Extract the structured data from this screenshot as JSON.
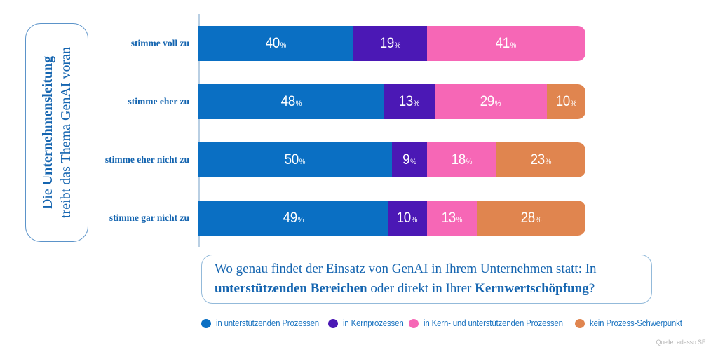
{
  "title": {
    "line1_part1": "Die ",
    "line1_part2_bold": "Unternehmensleitung",
    "line2": "treibt das Thema GenAI voran"
  },
  "question": {
    "part1": "Wo genau findet der Einsatz von GenAI in Ihrem Unternehmen statt: In",
    "part2_bold": "unterstützenden Bereichen",
    "part3": " oder direkt in Ihrer ",
    "part4_bold": "Kernwertschöpfung",
    "part5": "?"
  },
  "source": "Quelle: adesso SE",
  "colors": {
    "bar_blue": "#0a6fc3",
    "bar_purple": "#4b18b5",
    "bar_pink": "#f667b6",
    "bar_orange": "#e0854f",
    "text_blue": "#1565b0",
    "legend_text_blue": "#1a73c0",
    "axis_line": "#b9cfe3"
  },
  "chart_data": {
    "type": "bar",
    "orientation": "horizontal-stacked",
    "title": "Die Unternehmensleitung treibt das Thema GenAI voran",
    "categories": [
      "stimme voll zu",
      "stimme eher zu",
      "stimme eher nicht zu",
      "stimme gar nicht zu"
    ],
    "series": [
      {
        "name": "in unterstützenden Prozessen",
        "color": "#0a6fc3",
        "values": [
          40,
          48,
          50,
          49
        ]
      },
      {
        "name": "in Kernprozessen",
        "color": "#4b18b5",
        "values": [
          19,
          13,
          9,
          10
        ]
      },
      {
        "name": "in Kern- und unterstützenden Prozessen",
        "color": "#f667b6",
        "values": [
          41,
          29,
          18,
          13
        ]
      },
      {
        "name": "kein Prozess-Schwerpunkt",
        "color": "#e0854f",
        "values": [
          0,
          10,
          23,
          28
        ]
      }
    ],
    "value_suffix": "%",
    "xlim": [
      0,
      100
    ],
    "grid": false,
    "legend_position": "bottom"
  }
}
